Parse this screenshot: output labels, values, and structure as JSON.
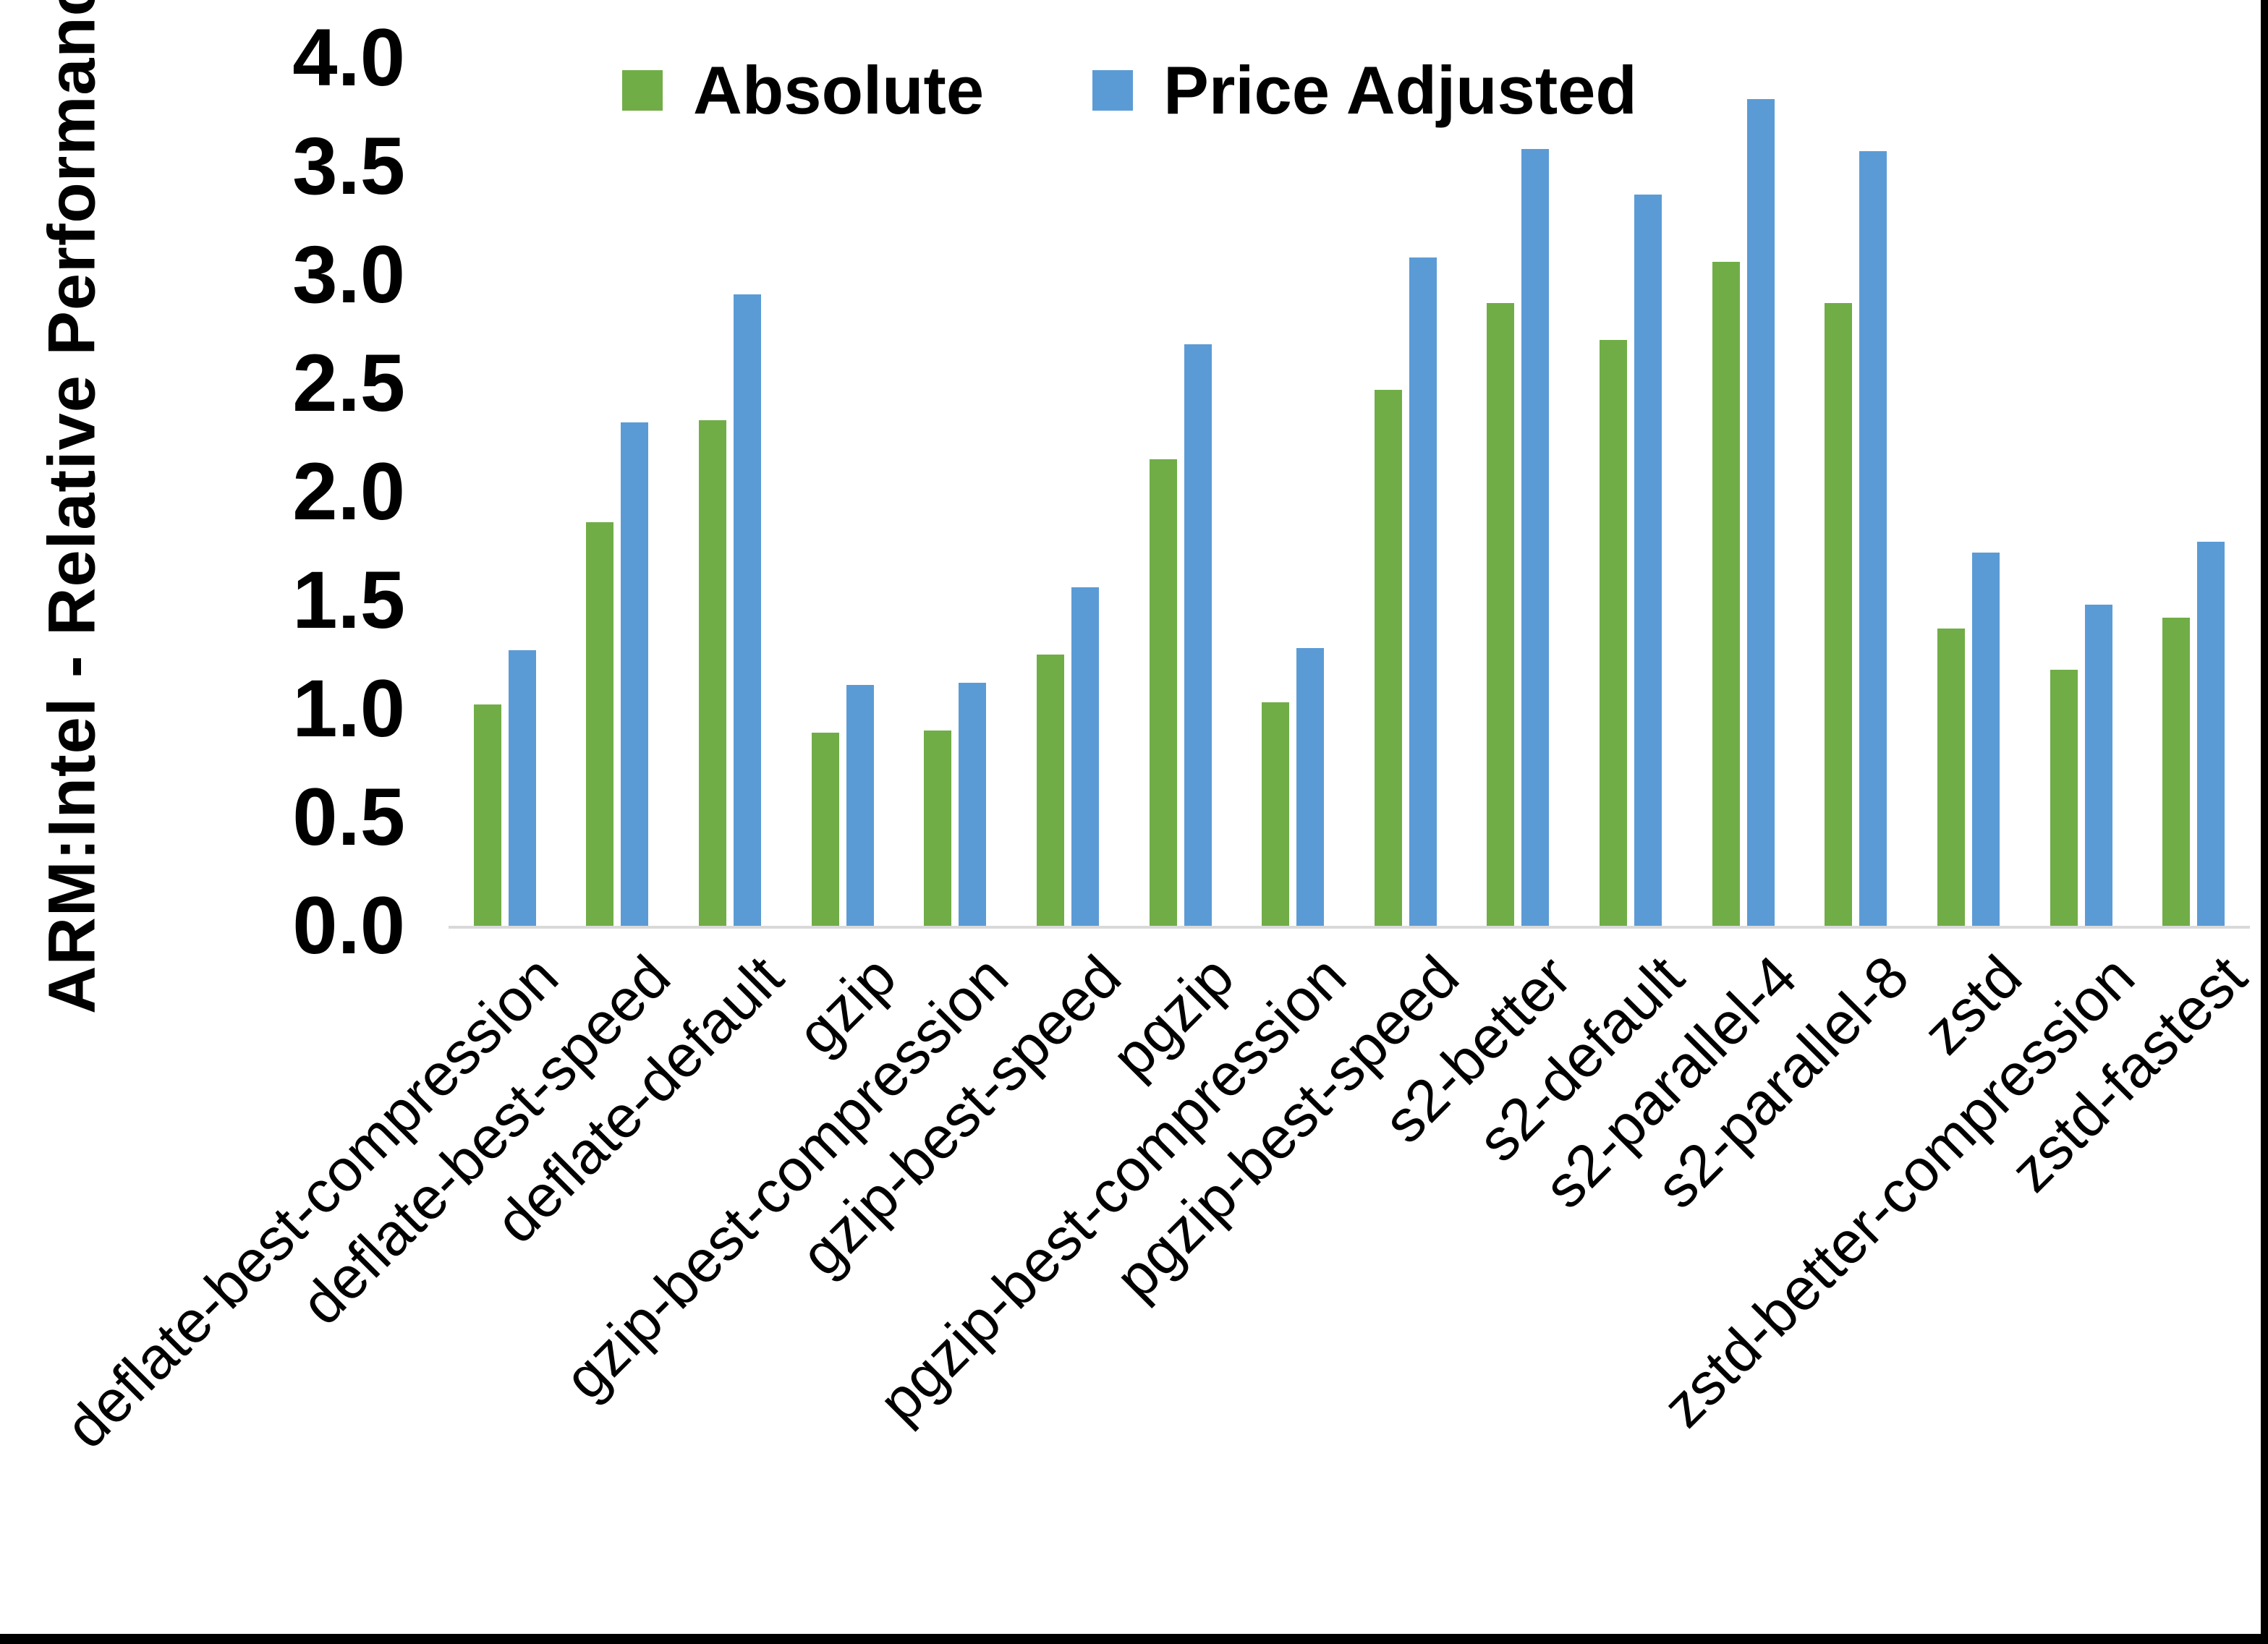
{
  "frame": {
    "edge_color": "#000000",
    "background": "#FFFFFF"
  },
  "chart_data": {
    "type": "bar",
    "title": "",
    "ylabel": "ARM:Intel - Relative Performance",
    "xlabel": "",
    "ylim": [
      0.0,
      4.0
    ],
    "ytick_step": 0.5,
    "yticks": [
      "0.0",
      "0.5",
      "1.0",
      "1.5",
      "2.0",
      "2.5",
      "3.0",
      "3.5",
      "4.0"
    ],
    "grid": false,
    "legend_position": "top-center",
    "axis_line_color": "#D9D9D9",
    "categories": [
      "deflate-best-compression",
      "deflate-best-speed",
      "deflate-default",
      "gzip",
      "gzip-best-compression",
      "gzip-best-speed",
      "pgzip",
      "pgzip-best-compression",
      "pgzip-best-speed",
      "s2-better",
      "s2-default",
      "s2-parallel-4",
      "s2-parallel-8",
      "zstd",
      "zstd-better-compression",
      "zstd-fastest"
    ],
    "series": [
      {
        "name": "Absolute",
        "color": "#70AD47",
        "values": [
          1.02,
          1.86,
          2.33,
          0.89,
          0.9,
          1.25,
          2.15,
          1.03,
          2.47,
          2.87,
          2.7,
          3.06,
          2.87,
          1.37,
          1.18,
          1.42
        ]
      },
      {
        "name": "Price Adjusted",
        "color": "#5B9BD5",
        "values": [
          1.27,
          2.32,
          2.91,
          1.11,
          1.12,
          1.56,
          2.68,
          1.28,
          3.08,
          3.58,
          3.37,
          3.81,
          3.57,
          1.72,
          1.48,
          1.77
        ]
      }
    ]
  }
}
